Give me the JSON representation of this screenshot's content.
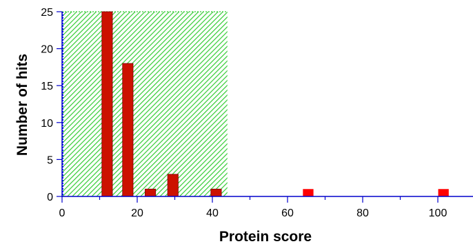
{
  "chart_data": {
    "type": "bar",
    "title": "",
    "xlabel": "Protein score",
    "ylabel": "Number of hits",
    "xlim": [
      0,
      110
    ],
    "ylim": [
      0,
      25
    ],
    "x_ticks": [
      0,
      20,
      40,
      60,
      80,
      100
    ],
    "x_minor_ticks": [
      10,
      30,
      50,
      70,
      90,
      110
    ],
    "y_ticks": [
      0,
      5,
      10,
      15,
      20,
      25
    ],
    "threshold_region": {
      "from": 0,
      "to": 44,
      "fill": "hatched"
    },
    "bins": [
      {
        "x": 12,
        "hits": 25,
        "width": 2.8
      },
      {
        "x": 17.5,
        "hits": 18,
        "width": 2.8
      },
      {
        "x": 23.5,
        "hits": 1,
        "width": 2.8
      },
      {
        "x": 29.5,
        "hits": 3,
        "width": 2.8
      },
      {
        "x": 41,
        "hits": 1,
        "width": 2.8
      },
      {
        "x": 65.5,
        "hits": 1,
        "width": 2.8
      },
      {
        "x": 101.5,
        "hits": 1,
        "width": 2.8
      }
    ],
    "grid": false,
    "legend": "none"
  },
  "colors": {
    "axis": "#0000cc",
    "bar_in_region": "#cc1100",
    "bar_outside_region": "#ff0000",
    "bar_outline": "#7a0000",
    "hatch_green": "#33cc33",
    "hatch_blue": "#0000ff"
  }
}
